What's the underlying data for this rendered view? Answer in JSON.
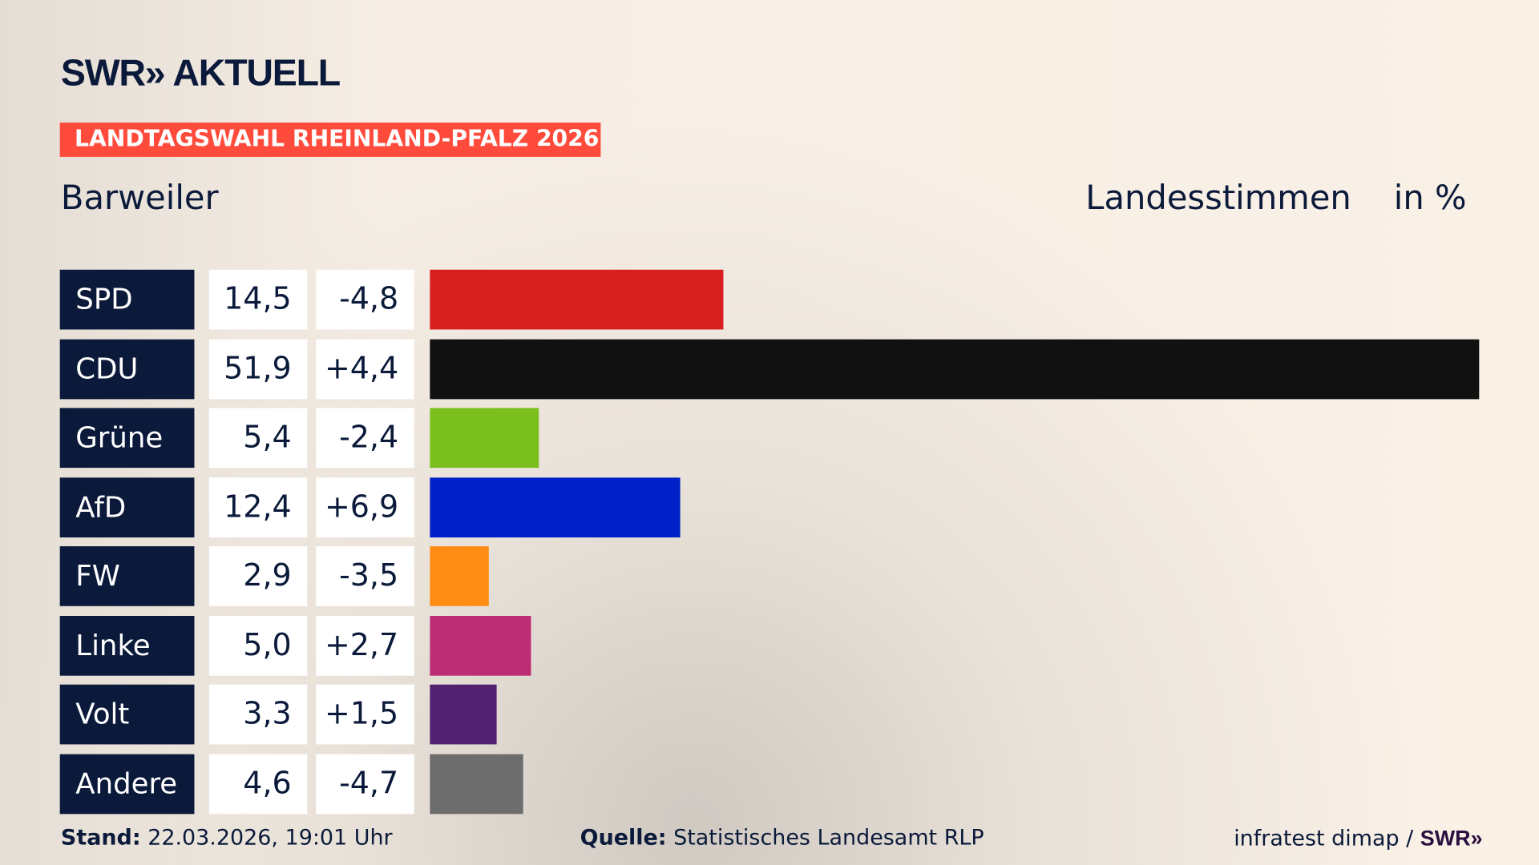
{
  "header": {
    "logo": "SWR» AKTUELL",
    "tag": "LANDTAGSWAHL RHEINLAND-PFALZ 2026",
    "location": "Barweiler",
    "vote_type": "Landesstimmen",
    "unit": "in %"
  },
  "colors": {
    "tag": "#ff4b3c",
    "label_bg": "#0b1a3a"
  },
  "chart_data": {
    "type": "bar",
    "orientation": "horizontal",
    "xlim": [
      0,
      51.9
    ],
    "categories": [
      "SPD",
      "CDU",
      "Grüne",
      "AfD",
      "FW",
      "Linke",
      "Volt",
      "Andere"
    ],
    "values": [
      14.5,
      51.9,
      5.4,
      12.4,
      2.9,
      5.0,
      3.3,
      4.6
    ],
    "value_labels": [
      "14,5",
      "51,9",
      "5,4",
      "12,4",
      "2,9",
      "5,0",
      "3,3",
      "4,6"
    ],
    "diff_labels": [
      "-4,8",
      "+4,4",
      "-2,4",
      "+6,9",
      "-3,5",
      "+2,7",
      "+1,5",
      "-4,7"
    ],
    "colors": [
      "#d81f20",
      "#111111",
      "#7bbf1e",
      "#0020c8",
      "#ff8c14",
      "#bd2d75",
      "#52216f",
      "#6d6d6d"
    ]
  },
  "footer": {
    "stand_label": "Stand:",
    "stand": "22.03.2026, 19:01 Uhr",
    "source_label": "Quelle:",
    "source": "Statistisches Landesamt RLP",
    "credit": "infratest dimap / ",
    "credit_logo": "SWR»"
  }
}
